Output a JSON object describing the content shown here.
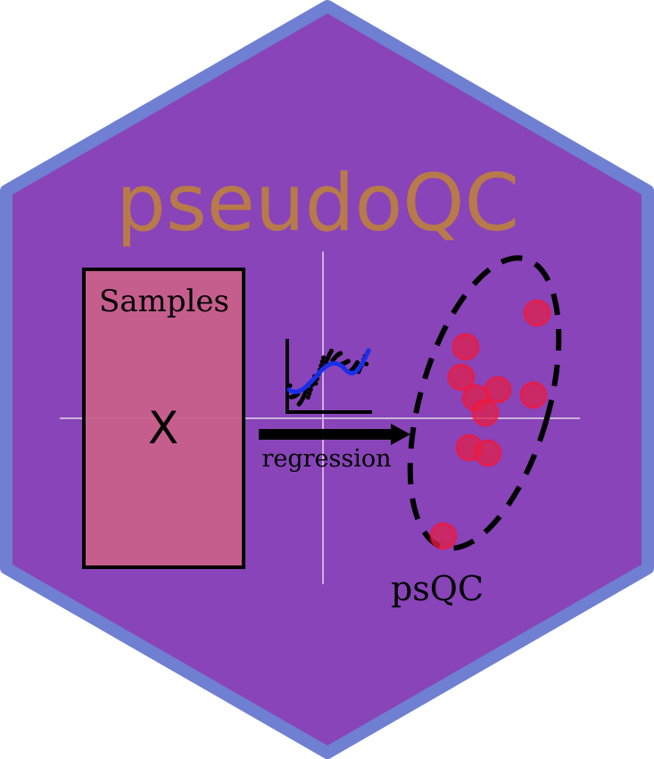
{
  "logo": {
    "title": "pseudoQC",
    "box_label": "Samples",
    "box_mark": "X",
    "arrow_label": "regression",
    "cluster_label": "psQC"
  },
  "colors": {
    "hex_fill": "#8844b8",
    "hex_border": "#6f80d2",
    "title": "#b87a4a",
    "box_fill": "#c9608a",
    "points": "#e0204a",
    "fit_line": "#1a2ee8",
    "crosshair": "#cdb2dc"
  }
}
